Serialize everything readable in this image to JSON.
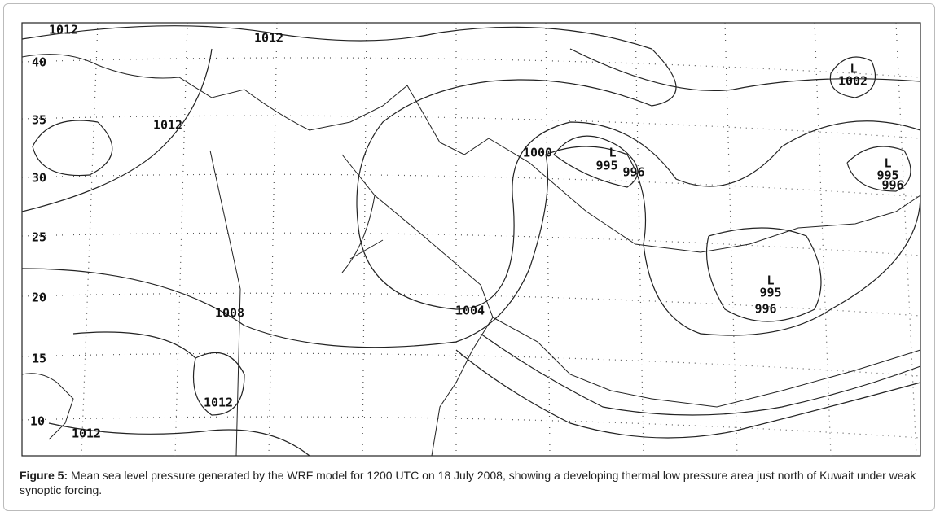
{
  "figure": {
    "latitude_labels": [
      "40",
      "35",
      "30",
      "25",
      "20",
      "15",
      "10"
    ],
    "isobar_labels": [
      "1012",
      "1012",
      "1012",
      "1000",
      "995",
      "996",
      "1002",
      "995",
      "996",
      "1008",
      "1004",
      "995",
      "996",
      "1012",
      "1012"
    ],
    "low_markers": [
      "L",
      "L",
      "L",
      "L"
    ],
    "caption": {
      "label": "Figure 5:",
      "text": "Mean sea level pressure generated by the WRF model for 1200 UTC on 18 July 2008, showing a developing thermal low pressure area just north of Kuwait under weak synoptic forcing."
    }
  }
}
